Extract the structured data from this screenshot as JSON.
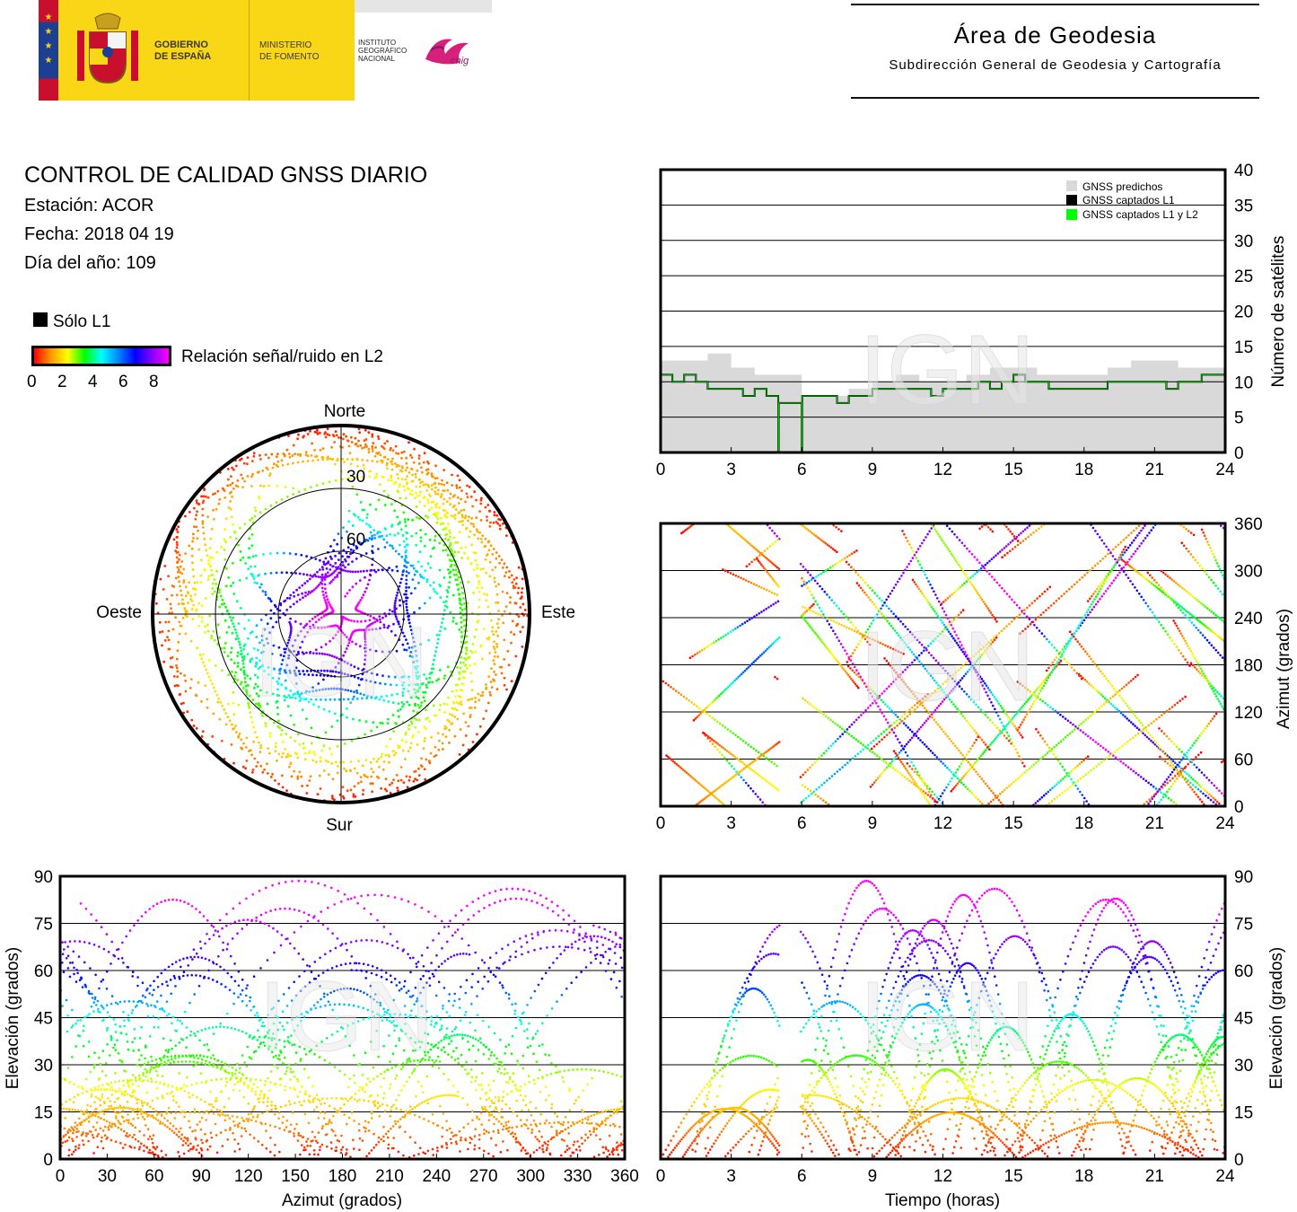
{
  "header": {
    "logo_gobierno": "GOBIERNO DE ESPAÑA",
    "logo_gobierno_l1": "GOBIERNO",
    "logo_gobierno_l2": "DE ESPAÑA",
    "logo_ministerio_l1": "MINISTERIO",
    "logo_ministerio_l2": "DE FOMENTO",
    "logo_ign_l1": "INSTITUTO",
    "logo_ign_l2": "GEOGRÁFICO",
    "logo_ign_l3": "NACIONAL",
    "logo_cnig": "cnig",
    "area_title": "Área de Geodesia",
    "area_subtitle": "Subdirección General de Geodesia y Cartografía"
  },
  "info": {
    "title": "CONTROL DE CALIDAD GNSS DIARIO",
    "station": "Estación: ACOR",
    "date": "Fecha: 2018 04 19",
    "doy": "Día del año: 109",
    "solo_l1": "Sólo L1",
    "snr_label": "Relación señal/ruido en L2",
    "snr_ticks": [
      "0",
      "2",
      "4",
      "6",
      "8"
    ]
  },
  "watermark": "IGN",
  "chart_data": [
    {
      "id": "skyplot",
      "type": "scatter",
      "projection": "polar",
      "directions": {
        "north": "Norte",
        "south": "Sur",
        "west": "Oeste",
        "east": "Este"
      },
      "ring_labels": [
        "30",
        "60"
      ],
      "rings_elevation": [
        0,
        30,
        60
      ],
      "color_scale": {
        "min": 0,
        "max": 8,
        "colors": [
          "#ff0000",
          "#ff9900",
          "#ffff00",
          "#00ff00",
          "#00ffff",
          "#0000ff",
          "#8800ff",
          "#ff00ff"
        ]
      }
    },
    {
      "id": "num_sats",
      "type": "area",
      "xlabel": "",
      "ylabel": "Número de satélites",
      "xlim": [
        0,
        24
      ],
      "ylim": [
        0,
        40
      ],
      "xticks": [
        "0",
        "3",
        "6",
        "9",
        "12",
        "15",
        "18",
        "21",
        "24"
      ],
      "yticks": [
        "0",
        "5",
        "10",
        "15",
        "20",
        "25",
        "30",
        "35",
        "40"
      ],
      "legend": [
        "GNSS predichos",
        "GNSS captados L1",
        "GNSS captados L1 y L2"
      ],
      "legend_colors": [
        "#d9d9d9",
        "#000000",
        "#00ff00"
      ],
      "grid": true,
      "series": [
        {
          "x": [
            0,
            1,
            2,
            3,
            4,
            5,
            6,
            7,
            8,
            9,
            10,
            11,
            12,
            13,
            14,
            15,
            16,
            17,
            18,
            19,
            20,
            21,
            22,
            23,
            24
          ],
          "values": [
            13,
            13,
            14,
            12,
            11,
            11,
            8,
            8,
            9,
            10,
            11,
            10,
            10,
            11,
            12,
            12,
            11,
            11,
            11,
            12,
            13,
            13,
            12,
            12,
            12
          ]
        },
        {
          "x": [
            0,
            0.5,
            1,
            1.5,
            2,
            2.5,
            3,
            3.5,
            4,
            4.5,
            4.98,
            5.0,
            5.02,
            5.5,
            5.98,
            6.0,
            6.02,
            6.5,
            7,
            7.5,
            8,
            8.5,
            9,
            9.5,
            10,
            10.5,
            11,
            11.5,
            12,
            12.5,
            13,
            13.5,
            14,
            14.5,
            15,
            15.5,
            16,
            16.5,
            17,
            17.5,
            18,
            18.5,
            19,
            19.5,
            20,
            20.5,
            21,
            21.5,
            22,
            22.5,
            23,
            23.5,
            24
          ],
          "values": [
            11,
            10,
            11,
            10,
            9,
            9,
            9,
            8,
            9,
            8,
            8,
            0,
            7,
            7,
            7,
            0,
            8,
            8,
            8,
            7,
            8,
            8,
            9,
            9,
            9,
            9,
            9,
            8,
            9,
            9,
            9,
            10,
            9,
            10,
            11,
            10,
            10,
            9,
            9,
            9,
            9,
            9,
            10,
            10,
            10,
            10,
            10,
            9,
            10,
            10,
            11,
            11,
            11
          ]
        }
      ]
    },
    {
      "id": "azimut_tiempo",
      "type": "scatter",
      "ylabel": "Azimut (grados)",
      "xlim": [
        0,
        24
      ],
      "ylim": [
        0,
        360
      ],
      "xticks": [
        "0",
        "3",
        "6",
        "9",
        "12",
        "15",
        "18",
        "21",
        "24"
      ],
      "yticks": [
        "0",
        "60",
        "120",
        "180",
        "240",
        "300",
        "360"
      ],
      "grid": true
    },
    {
      "id": "elev_azimut",
      "type": "scatter",
      "xlabel": "Azimut (grados)",
      "ylabel": "Elevación (grados)",
      "xlim": [
        0,
        360
      ],
      "ylim": [
        0,
        90
      ],
      "xticks": [
        "0",
        "30",
        "60",
        "90",
        "120",
        "150",
        "180",
        "210",
        "240",
        "270",
        "300",
        "330",
        "360"
      ],
      "yticks": [
        "0",
        "15",
        "30",
        "45",
        "60",
        "75",
        "90"
      ],
      "grid": true
    },
    {
      "id": "elev_tiempo",
      "type": "scatter",
      "xlabel": "Tiempo (horas)",
      "ylabel": "Elevación (grados)",
      "xlim": [
        0,
        24
      ],
      "ylim": [
        0,
        90
      ],
      "xticks": [
        "0",
        "3",
        "6",
        "9",
        "12",
        "15",
        "18",
        "21",
        "24"
      ],
      "yticks": [
        "0",
        "15",
        "30",
        "45",
        "60",
        "75",
        "90"
      ],
      "grid": true
    }
  ]
}
